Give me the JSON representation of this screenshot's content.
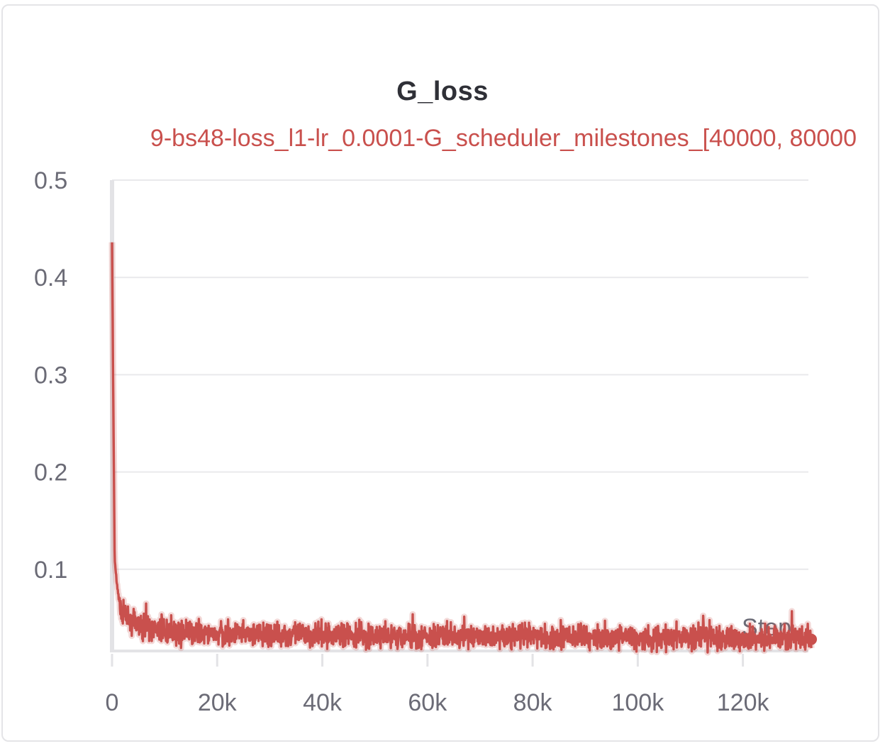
{
  "chart_data": {
    "type": "line",
    "title": "G_loss",
    "legend": {
      "placement": "top",
      "text": "9-bs48-loss_l1-lr_0.0001-G_scheduler_milestones_[40000, 80000",
      "color": "#c9504d"
    },
    "xlabel": "Step",
    "ylabel": "",
    "xlim": [
      0,
      133000
    ],
    "ylim": [
      0,
      0.5
    ],
    "x_ticks": [
      0,
      20000,
      40000,
      60000,
      80000,
      100000,
      120000
    ],
    "x_tick_labels": [
      "0",
      "20k",
      "40k",
      "60k",
      "80k",
      "100k",
      "120k"
    ],
    "y_ticks": [
      0.1,
      0.2,
      0.3,
      0.4,
      0.5
    ],
    "y_tick_labels": [
      "0.1",
      "0.2",
      "0.3",
      "0.4",
      "0.5"
    ],
    "grid": true,
    "series": [
      {
        "color": "#c9504d",
        "x": [
          0,
          200,
          500,
          1000,
          1500,
          2000,
          3000,
          4000,
          5000,
          6000,
          8000,
          10000,
          12000,
          15000,
          20000,
          25000,
          30000,
          35000,
          40000,
          45000,
          50000,
          55000,
          60000,
          65000,
          70000,
          75000,
          80000,
          85000,
          90000,
          95000,
          100000,
          105000,
          110000,
          115000,
          120000,
          125000,
          130000,
          133000
        ],
        "values": [
          0.437,
          0.3,
          0.11,
          0.08,
          0.065,
          0.055,
          0.048,
          0.045,
          0.042,
          0.04,
          0.038,
          0.036,
          0.035,
          0.034,
          0.033,
          0.033,
          0.032,
          0.033,
          0.032,
          0.032,
          0.031,
          0.031,
          0.031,
          0.031,
          0.03,
          0.031,
          0.031,
          0.03,
          0.03,
          0.03,
          0.03,
          0.029,
          0.03,
          0.029,
          0.029,
          0.03,
          0.029,
          0.028
        ]
      }
    ]
  }
}
